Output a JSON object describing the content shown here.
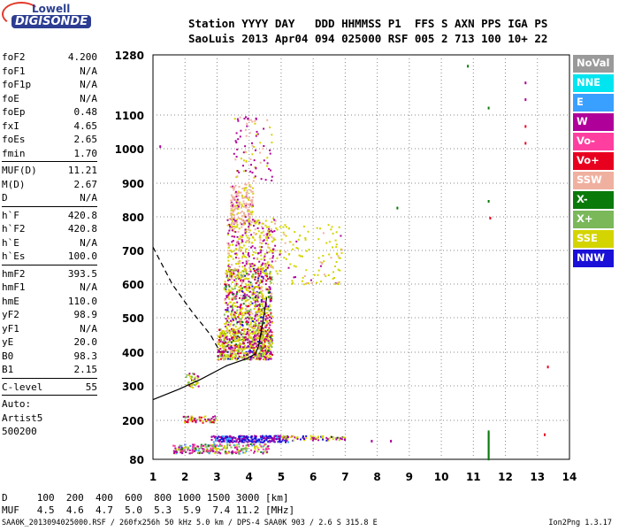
{
  "logo": {
    "top": "Lowell",
    "bottom": "DIGISONDE"
  },
  "header": {
    "line1": "Station YYYY DAY   DDD HHMMSS P1  FFS S AXN PPS IGA PS",
    "line2": "SaoLuis 2013 Apr04 094 025000 RSF 005 2 713 100 10+ 22"
  },
  "params_group1": [
    {
      "k": "foF2",
      "v": "4.200"
    },
    {
      "k": "foF1",
      "v": "N/A"
    },
    {
      "k": "foF1p",
      "v": "N/A"
    },
    {
      "k": "foE",
      "v": "N/A"
    },
    {
      "k": "foEp",
      "v": "0.48"
    },
    {
      "k": "fxI",
      "v": "4.65"
    },
    {
      "k": "foEs",
      "v": "2.65"
    },
    {
      "k": "fmin",
      "v": "1.70"
    }
  ],
  "params_group2": [
    {
      "k": "MUF(D)",
      "v": "11.21"
    },
    {
      "k": "M(D)",
      "v": "2.67"
    },
    {
      "k": "D",
      "v": "N/A"
    }
  ],
  "params_group3": [
    {
      "k": "h`F",
      "v": "420.8"
    },
    {
      "k": "h`F2",
      "v": "420.8"
    },
    {
      "k": "h`E",
      "v": "N/A"
    },
    {
      "k": "h`Es",
      "v": "100.0"
    }
  ],
  "params_group4": [
    {
      "k": "hmF2",
      "v": "393.5"
    },
    {
      "k": "hmF1",
      "v": "N/A"
    },
    {
      "k": "hmE",
      "v": "110.0"
    },
    {
      "k": "yF2",
      "v": "98.9"
    },
    {
      "k": "yF1",
      "v": "N/A"
    },
    {
      "k": "yE",
      "v": "20.0"
    },
    {
      "k": "B0",
      "v": "98.3"
    },
    {
      "k": "B1",
      "v": "2.15"
    }
  ],
  "params_group5": [
    {
      "k": "C-level",
      "v": "55"
    }
  ],
  "scaler": {
    "line1": "Auto:",
    "line2": "Artist5",
    "line3": "500200"
  },
  "muf": {
    "line1": "D     100  200  400  600  800 1000 1500 3000 [km]",
    "line2": "MUF   4.5  4.6  4.7  5.0  5.3  5.9  7.4 11.2 [MHz]"
  },
  "footer": {
    "left": "SAA0K_2013094025000.RSF / 260fx256h 50 kHz 5.0 km / DPS-4 SAA0K 903 / 2.6 S 315.8 E",
    "right": "Ion2Png 1.3.17"
  },
  "legend": [
    {
      "label": "NoVal",
      "color": "#9a9a9a"
    },
    {
      "label": "NNE",
      "color": "#00e5f0"
    },
    {
      "label": "E",
      "color": "#3aa0ff"
    },
    {
      "label": "W",
      "color": "#b0009a"
    },
    {
      "label": "Vo-",
      "color": "#ff3fa0"
    },
    {
      "label": "Vo+",
      "color": "#e8001f"
    },
    {
      "label": "SSW",
      "color": "#f0b0a0"
    },
    {
      "label": "X-",
      "color": "#0a7a0a"
    },
    {
      "label": "X+",
      "color": "#7ab85a"
    },
    {
      "label": "SSE",
      "color": "#d4d400"
    },
    {
      "label": "NNW",
      "color": "#1a10d8"
    }
  ],
  "chart_data": {
    "type": "scatter",
    "xlim": [
      1,
      14
    ],
    "ylim_note": "non-linear height axis",
    "x_ticks": [
      "1",
      "2",
      "3",
      "4",
      "5",
      "6",
      "7",
      "8",
      "9",
      "10",
      "11",
      "12",
      "13",
      "14"
    ],
    "y_ticks": [
      "80",
      "200",
      "300",
      "400",
      "500",
      "600",
      "700",
      "800",
      "900",
      "1000",
      "1100",
      "1280"
    ],
    "grid": true,
    "series": [
      {
        "direction": "SSE",
        "points": [
          [
            4.3,
            420
          ],
          [
            4.5,
            600
          ],
          [
            4.6,
            800
          ],
          [
            4.7,
            1100
          ],
          [
            3.0,
            390
          ],
          [
            3.8,
            450
          ],
          [
            2.2,
            310
          ]
        ]
      },
      {
        "direction": "W",
        "points": [
          [
            3.3,
            500
          ],
          [
            3.5,
            620
          ],
          [
            4.0,
            700
          ],
          [
            4.5,
            900
          ],
          [
            1.9,
            130
          ]
        ]
      },
      {
        "direction": "SSW",
        "points": [
          [
            3.6,
            830
          ],
          [
            3.8,
            880
          ],
          [
            3.4,
            560
          ]
        ]
      },
      {
        "direction": "NNW",
        "points": [
          [
            3.6,
            145
          ],
          [
            4.1,
            150
          ],
          [
            4.5,
            148
          ]
        ]
      },
      {
        "direction": "X-",
        "points": [
          [
            11.45,
            100
          ],
          [
            11.5,
            1120
          ],
          [
            10.8,
            1250
          ]
        ]
      }
    ],
    "profile_curves": [
      {
        "name": "solid",
        "points": [
          [
            1.0,
            260
          ],
          [
            1.8,
            290
          ],
          [
            2.5,
            320
          ],
          [
            3.3,
            360
          ],
          [
            3.9,
            380
          ],
          [
            4.2,
            395
          ],
          [
            4.3,
            420
          ],
          [
            4.45,
            500
          ],
          [
            4.55,
            560
          ]
        ]
      },
      {
        "name": "dashed",
        "points": [
          [
            1.0,
            710
          ],
          [
            1.6,
            600
          ],
          [
            2.2,
            520
          ],
          [
            2.8,
            450
          ],
          [
            3.1,
            400
          ]
        ]
      }
    ]
  }
}
